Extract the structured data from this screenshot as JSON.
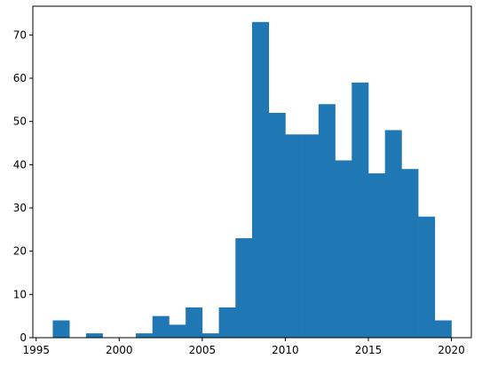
{
  "chart_data": {
    "type": "bar",
    "title": "",
    "xlabel": "",
    "ylabel": "",
    "xlim": [
      1994.8,
      2021.2
    ],
    "ylim": [
      0,
      76.65
    ],
    "bar_color": "#1f77b4",
    "grid": false,
    "legend": "none",
    "xticks": [
      {
        "value": 1995,
        "label": "1995"
      },
      {
        "value": 2000,
        "label": "2000"
      },
      {
        "value": 2005,
        "label": "2005"
      },
      {
        "value": 2010,
        "label": "2010"
      },
      {
        "value": 2015,
        "label": "2015"
      },
      {
        "value": 2020,
        "label": "2020"
      }
    ],
    "yticks": [
      {
        "value": 0,
        "label": "0"
      },
      {
        "value": 10,
        "label": "10"
      },
      {
        "value": 20,
        "label": "20"
      },
      {
        "value": 30,
        "label": "30"
      },
      {
        "value": 40,
        "label": "40"
      },
      {
        "value": 50,
        "label": "50"
      },
      {
        "value": 60,
        "label": "60"
      },
      {
        "value": 70,
        "label": "70"
      }
    ],
    "bins": [
      {
        "x0": 1996.0,
        "x1": 1997.0,
        "count": 4
      },
      {
        "x0": 1997.0,
        "x1": 1998.0,
        "count": 0
      },
      {
        "x0": 1998.0,
        "x1": 1999.0,
        "count": 1
      },
      {
        "x0": 1999.0,
        "x1": 2000.0,
        "count": 0
      },
      {
        "x0": 2000.0,
        "x1": 2001.0,
        "count": 0
      },
      {
        "x0": 2001.0,
        "x1": 2002.0,
        "count": 1
      },
      {
        "x0": 2002.0,
        "x1": 2003.0,
        "count": 5
      },
      {
        "x0": 2003.0,
        "x1": 2004.0,
        "count": 3
      },
      {
        "x0": 2004.0,
        "x1": 2005.0,
        "count": 7
      },
      {
        "x0": 2005.0,
        "x1": 2006.0,
        "count": 1
      },
      {
        "x0": 2006.0,
        "x1": 2007.0,
        "count": 7
      },
      {
        "x0": 2007.0,
        "x1": 2008.0,
        "count": 23
      },
      {
        "x0": 2008.0,
        "x1": 2009.0,
        "count": 73
      },
      {
        "x0": 2009.0,
        "x1": 2010.0,
        "count": 52
      },
      {
        "x0": 2010.0,
        "x1": 2011.0,
        "count": 47
      },
      {
        "x0": 2011.0,
        "x1": 2012.0,
        "count": 47
      },
      {
        "x0": 2012.0,
        "x1": 2013.0,
        "count": 54
      },
      {
        "x0": 2013.0,
        "x1": 2014.0,
        "count": 41
      },
      {
        "x0": 2014.0,
        "x1": 2015.0,
        "count": 59
      },
      {
        "x0": 2015.0,
        "x1": 2016.0,
        "count": 38
      },
      {
        "x0": 2016.0,
        "x1": 2017.0,
        "count": 48
      },
      {
        "x0": 2017.0,
        "x1": 2018.0,
        "count": 39
      },
      {
        "x0": 2018.0,
        "x1": 2019.0,
        "count": 28
      },
      {
        "x0": 2019.0,
        "x1": 2020.0,
        "count": 4
      }
    ]
  }
}
